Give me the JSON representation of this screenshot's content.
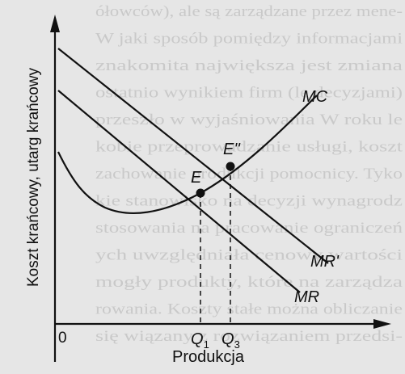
{
  "diagram": {
    "y_axis_label": "Koszt krańcowy, utarg krańcowy",
    "x_axis_label": "Produkcja",
    "origin_label": "0",
    "curves": {
      "mc": "MC",
      "mr": "MR",
      "mr_prime": "MR'"
    },
    "points": {
      "e": "E",
      "e_double_prime": "E''"
    },
    "x_marks": {
      "q1": {
        "base": "Q",
        "sub": "1"
      },
      "q3": {
        "base": "Q",
        "sub": "3"
      }
    }
  },
  "background_text": [
    "ółowców), ale są zarządzane przez mene-",
    "W jaki sposób pomiędzy informacjami",
    "znakomita największa jest zmiana",
    "ostatnio wynikiem firm (le decyzjami)",
    "przeszło w wyjaśniowania W roku le",
    "kobie przeprowadzanie usługi, koszt",
    "zachowanie produkcji pomocnicy. Tyko",
    "kie stanowisko na decyzji wynagrodz",
    "stosowania na pracowanie ograniczeń",
    "ych uwzględniała cenowy wartości",
    "mogły produkty, które na zarządza",
    "rowania. Koszty stałe można obliczanie",
    "się wiązany z rozwiązaniem przedsi-"
  ]
}
